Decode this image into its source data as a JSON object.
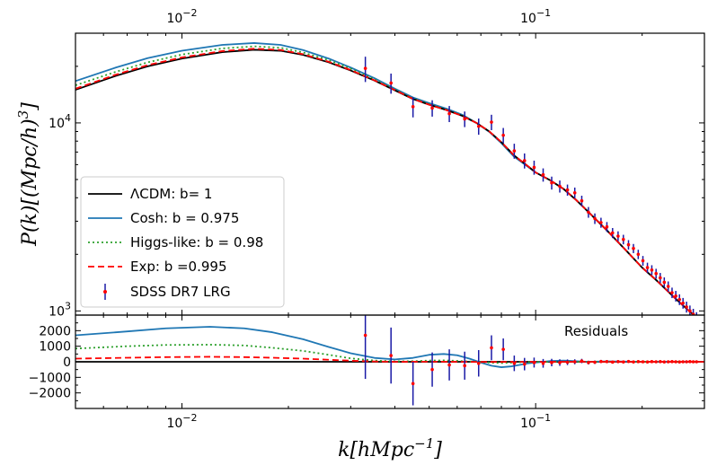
{
  "chart_data": [
    {
      "type": "line",
      "panel": "main",
      "xscale": "log",
      "yscale": "log",
      "xlim": [
        0.005,
        0.3
      ],
      "ylim": [
        950,
        30000
      ],
      "xlabel": "k[hMpc^{-1}]",
      "ylabel": "P(k)[(Mpc/h)^3]",
      "top_ticks": [
        {
          "value": 0.01,
          "label": "10",
          "exp": "−2"
        },
        {
          "value": 0.1,
          "label": "10",
          "exp": "−1"
        }
      ],
      "y_ticks": [
        {
          "value": 1000,
          "label": "10",
          "exp": "3"
        },
        {
          "value": 10000,
          "label": "10",
          "exp": "4"
        }
      ],
      "legend_position": "lower-left",
      "series": [
        {
          "name": "ΛCDM: b= 1",
          "color": "#000000",
          "style": "solid",
          "x": [
            0.005,
            0.0065,
            0.008,
            0.01,
            0.013,
            0.016,
            0.019,
            0.022,
            0.026,
            0.03,
            0.035,
            0.04,
            0.045,
            0.05,
            0.056,
            0.062,
            0.068,
            0.074,
            0.08,
            0.087,
            0.095,
            0.1,
            0.11,
            0.12,
            0.13,
            0.14,
            0.16,
            0.18,
            0.2,
            0.22,
            0.25,
            0.28,
            0.3
          ],
          "y": [
            15000,
            17800,
            20000,
            22000,
            23800,
            24500,
            24200,
            23000,
            21000,
            19000,
            16800,
            14900,
            13400,
            12500,
            11700,
            10900,
            10000,
            9000,
            7900,
            6700,
            5900,
            5450,
            4950,
            4450,
            3900,
            3400,
            2650,
            2100,
            1700,
            1450,
            1150,
            950,
            850
          ]
        },
        {
          "name": "Cosh: b = 0.975",
          "color": "#1f77b4",
          "style": "solid",
          "x": [
            0.005,
            0.0065,
            0.008,
            0.01,
            0.013,
            0.016,
            0.019,
            0.022,
            0.026,
            0.03,
            0.035,
            0.04,
            0.045,
            0.05,
            0.056,
            0.062,
            0.068,
            0.074,
            0.08,
            0.087,
            0.095,
            0.1,
            0.11,
            0.12,
            0.13,
            0.14,
            0.16,
            0.18,
            0.2,
            0.22,
            0.25,
            0.28,
            0.3
          ],
          "y": [
            16700,
            19700,
            22100,
            24200,
            26000,
            26600,
            26000,
            24400,
            22000,
            19700,
            17300,
            15200,
            13650,
            12750,
            11900,
            11050,
            10000,
            8950,
            7800,
            6600,
            5850,
            5450,
            4950,
            4450,
            3900,
            3400,
            2650,
            2100,
            1700,
            1450,
            1150,
            950,
            850
          ]
        },
        {
          "name": "Higgs-like: b = 0.98",
          "color": "#2ca02c",
          "style": "dotted",
          "x": [
            0.005,
            0.0065,
            0.008,
            0.01,
            0.013,
            0.016,
            0.019,
            0.022,
            0.026,
            0.03,
            0.035,
            0.04,
            0.045,
            0.05,
            0.056,
            0.062,
            0.068,
            0.074,
            0.08,
            0.087,
            0.095,
            0.1,
            0.11,
            0.12,
            0.13,
            0.14,
            0.16,
            0.18,
            0.2,
            0.22,
            0.25,
            0.28,
            0.3
          ],
          "y": [
            15850,
            18700,
            21000,
            23100,
            24900,
            25550,
            25100,
            23700,
            21550,
            19450,
            17050,
            15050,
            13500,
            12600,
            11750,
            10950,
            10000,
            9000,
            7900,
            6700,
            5900,
            5450,
            4950,
            4450,
            3900,
            3400,
            2650,
            2100,
            1700,
            1450,
            1150,
            950,
            850
          ]
        },
        {
          "name": "Exp: b =0.995",
          "color": "#ff0000",
          "style": "dashed",
          "x": [
            0.005,
            0.0065,
            0.008,
            0.01,
            0.013,
            0.016,
            0.019,
            0.022,
            0.026,
            0.03,
            0.035,
            0.04,
            0.045,
            0.05,
            0.056,
            0.062,
            0.068,
            0.074,
            0.08,
            0.087,
            0.095,
            0.1,
            0.11,
            0.12,
            0.13,
            0.14,
            0.16,
            0.18,
            0.2,
            0.22,
            0.25,
            0.28,
            0.3
          ],
          "y": [
            15200,
            18050,
            20300,
            22300,
            24100,
            24800,
            24450,
            23200,
            21150,
            19100,
            16850,
            14950,
            13420,
            12500,
            11700,
            10900,
            10000,
            9000,
            7900,
            6700,
            5900,
            5450,
            4950,
            4450,
            3900,
            3400,
            2650,
            2100,
            1700,
            1450,
            1150,
            950,
            850
          ]
        },
        {
          "name": "SDSS DR7 LRG",
          "color": "#1a1aa6",
          "marker_color": "#ff0000",
          "style": "errorbar",
          "x": [
            0.033,
            0.039,
            0.045,
            0.051,
            0.057,
            0.063,
            0.069,
            0.075,
            0.081,
            0.087,
            0.093,
            0.099,
            0.105,
            0.111,
            0.117,
            0.123,
            0.129,
            0.135,
            0.141,
            0.147,
            0.153,
            0.159,
            0.165,
            0.171,
            0.177,
            0.183,
            0.189,
            0.195,
            0.201,
            0.207,
            0.213,
            0.219,
            0.225,
            0.231,
            0.237,
            0.243,
            0.249,
            0.255,
            0.261,
            0.267,
            0.273,
            0.279,
            0.285
          ],
          "y": [
            19500,
            16300,
            12200,
            12000,
            11200,
            10500,
            9600,
            10100,
            8600,
            7100,
            6300,
            5800,
            5300,
            4800,
            4600,
            4400,
            4250,
            3850,
            3350,
            3100,
            2950,
            2800,
            2600,
            2500,
            2400,
            2250,
            2150,
            2000,
            1850,
            1700,
            1650,
            1580,
            1500,
            1420,
            1350,
            1250,
            1200,
            1150,
            1100,
            1050,
            1000,
            960,
            920
          ],
          "err": [
            3000,
            2000,
            1500,
            1200,
            1100,
            1000,
            950,
            950,
            800,
            650,
            580,
            500,
            430,
            380,
            340,
            300,
            280,
            250,
            220,
            200,
            180,
            170,
            160,
            150,
            140,
            130,
            120,
            115,
            110,
            105,
            100,
            95,
            92,
            88,
            85,
            80,
            78,
            75,
            72,
            70,
            68,
            66,
            64
          ]
        }
      ]
    },
    {
      "type": "line",
      "panel": "residuals",
      "xscale": "log",
      "xlim": [
        0.005,
        0.3
      ],
      "ylim": [
        -3000,
        3000
      ],
      "title": "Residuals",
      "xlabel": "k[hMpc^{-1}]",
      "x_ticks": [
        {
          "value": 0.01,
          "label": "10",
          "exp": "−2"
        },
        {
          "value": 0.1,
          "label": "10",
          "exp": "−1"
        }
      ],
      "y_ticks": [
        {
          "value": 2000,
          "label": "2000"
        },
        {
          "value": 1000,
          "label": "1000"
        },
        {
          "value": 0,
          "label": "0"
        },
        {
          "value": -1000,
          "label": "−1000"
        },
        {
          "value": -2000,
          "label": "−2000"
        }
      ],
      "series": [
        {
          "name": "ΛCDM: b= 1",
          "color": "#000000",
          "style": "solid",
          "x": [
            0.005,
            0.3
          ],
          "y": [
            0,
            0
          ]
        },
        {
          "name": "Cosh: b = 0.975",
          "color": "#1f77b4",
          "style": "solid",
          "x": [
            0.005,
            0.007,
            0.009,
            0.012,
            0.015,
            0.018,
            0.022,
            0.026,
            0.03,
            0.035,
            0.04,
            0.045,
            0.05,
            0.055,
            0.06,
            0.065,
            0.07,
            0.075,
            0.08,
            0.085,
            0.09,
            0.095,
            0.1,
            0.11,
            0.12,
            0.14,
            0.16,
            0.2,
            0.25,
            0.3
          ],
          "y": [
            1700,
            1950,
            2150,
            2250,
            2150,
            1900,
            1450,
            950,
            550,
            250,
            150,
            250,
            450,
            500,
            420,
            200,
            -50,
            -250,
            -350,
            -300,
            -200,
            -100,
            -50,
            50,
            80,
            0,
            30,
            0,
            0,
            0
          ]
        },
        {
          "name": "Higgs-like: b = 0.98",
          "color": "#2ca02c",
          "style": "dotted",
          "x": [
            0.005,
            0.007,
            0.009,
            0.012,
            0.015,
            0.018,
            0.022,
            0.026,
            0.03,
            0.035,
            0.04,
            0.045,
            0.05,
            0.055,
            0.06,
            0.065,
            0.07,
            0.075,
            0.08,
            0.085,
            0.09,
            0.1,
            0.12,
            0.15,
            0.2,
            0.3
          ],
          "y": [
            850,
            1000,
            1080,
            1100,
            1050,
            900,
            700,
            450,
            220,
            80,
            30,
            40,
            80,
            90,
            60,
            20,
            -20,
            -60,
            -80,
            -60,
            -30,
            -10,
            0,
            0,
            0,
            0
          ]
        },
        {
          "name": "Exp: b =0.995",
          "color": "#ff0000",
          "style": "dashed",
          "x": [
            0.005,
            0.007,
            0.009,
            0.012,
            0.015,
            0.018,
            0.022,
            0.026,
            0.03,
            0.035,
            0.04,
            0.05,
            0.06,
            0.07,
            0.08,
            0.09,
            0.1,
            0.15,
            0.2,
            0.3
          ],
          "y": [
            200,
            260,
            300,
            320,
            300,
            260,
            200,
            130,
            70,
            20,
            0,
            10,
            0,
            -10,
            -10,
            0,
            0,
            0,
            0,
            0
          ]
        },
        {
          "name": "SDSS DR7 LRG",
          "color": "#1a1aa6",
          "marker_color": "#ff0000",
          "style": "errorbar",
          "x": [
            0.033,
            0.039,
            0.045,
            0.051,
            0.057,
            0.063,
            0.069,
            0.075,
            0.081,
            0.087,
            0.093,
            0.099,
            0.105,
            0.111,
            0.117,
            0.123,
            0.129,
            0.135,
            0.141,
            0.147,
            0.153,
            0.159,
            0.165,
            0.171,
            0.177,
            0.183,
            0.189,
            0.195,
            0.201,
            0.207,
            0.213,
            0.219,
            0.225,
            0.231,
            0.237,
            0.243,
            0.249,
            0.255,
            0.261,
            0.267,
            0.273,
            0.279,
            0.285
          ],
          "y": [
            1700,
            400,
            -1400,
            -500,
            -200,
            -250,
            -100,
            900,
            800,
            -100,
            -150,
            -50,
            -100,
            -50,
            -50,
            -30,
            0,
            50,
            -50,
            -30,
            20,
            10,
            -20,
            10,
            -10,
            20,
            -10,
            10,
            0,
            -10,
            10,
            0,
            10,
            -10,
            0,
            10,
            0,
            -10,
            0,
            0,
            10,
            0,
            0
          ],
          "err": [
            2800,
            1800,
            1400,
            1100,
            1000,
            900,
            850,
            800,
            700,
            500,
            400,
            320,
            280,
            240,
            210,
            180,
            160,
            140,
            120,
            110,
            100,
            95,
            90,
            85,
            80,
            75,
            70,
            65,
            62,
            60,
            58,
            55,
            52,
            50,
            48,
            46,
            44,
            42,
            40,
            38,
            36,
            35,
            34
          ]
        }
      ]
    }
  ]
}
